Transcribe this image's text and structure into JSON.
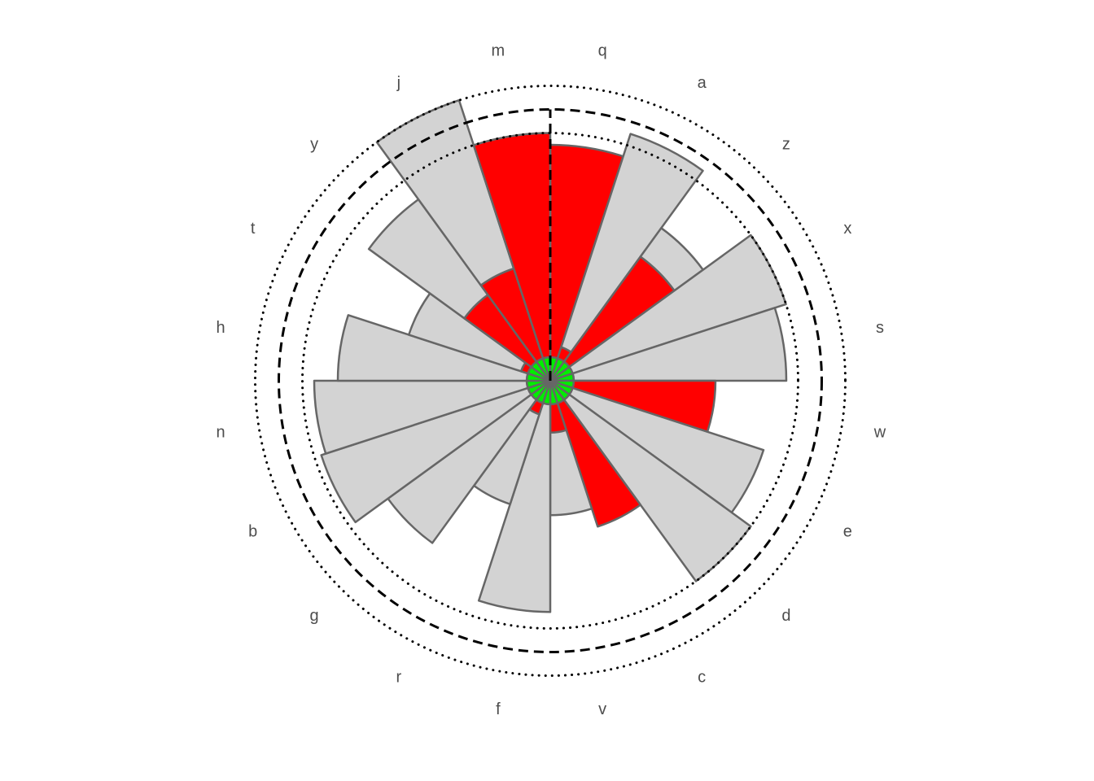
{
  "chart_data": {
    "type": "bar",
    "subtype": "polar-stacked-bar",
    "title": "",
    "xlabel": "",
    "ylabel": "",
    "angular_start": "12 o'clock",
    "direction": "clockwise",
    "categories": [
      "q",
      "a",
      "z",
      "x",
      "s",
      "w",
      "e",
      "d",
      "c",
      "v",
      "f",
      "r",
      "g",
      "b",
      "n",
      "h",
      "t",
      "y",
      "j",
      "m"
    ],
    "series": [
      {
        "values": [
          10,
          10,
          10,
          10,
          10,
          10,
          10,
          10,
          10,
          10,
          10,
          10,
          10,
          10,
          10,
          10,
          10,
          10,
          10,
          10
        ]
      },
      {
        "values": [
          90,
          5,
          55,
          0,
          0,
          60,
          0,
          0,
          55,
          12,
          0,
          5,
          0,
          0,
          0,
          0,
          3,
          35,
          40,
          95
        ]
      },
      {
        "values": [
          0,
          95,
          15,
          95,
          90,
          0,
          85,
          95,
          0,
          35,
          88,
          40,
          75,
          92,
          90,
          80,
          50,
          50,
          75,
          0
        ]
      }
    ],
    "reference_circles": [
      {
        "value": 105,
        "style": "dotted"
      },
      {
        "value": 115,
        "style": "dashed"
      },
      {
        "value": 125,
        "style": "dotted"
      }
    ],
    "reference_radial_line": {
      "angle_category": "q",
      "style": "dashed"
    },
    "colors": {
      "series": [
        "#00ee00",
        "#ff0000",
        "#d3d3d3"
      ],
      "bar_outline": "#666666",
      "reference_lines": "#000000",
      "label_text": "#4d4d4d",
      "background": "#ffffff"
    },
    "grid": false,
    "legend": "none"
  }
}
